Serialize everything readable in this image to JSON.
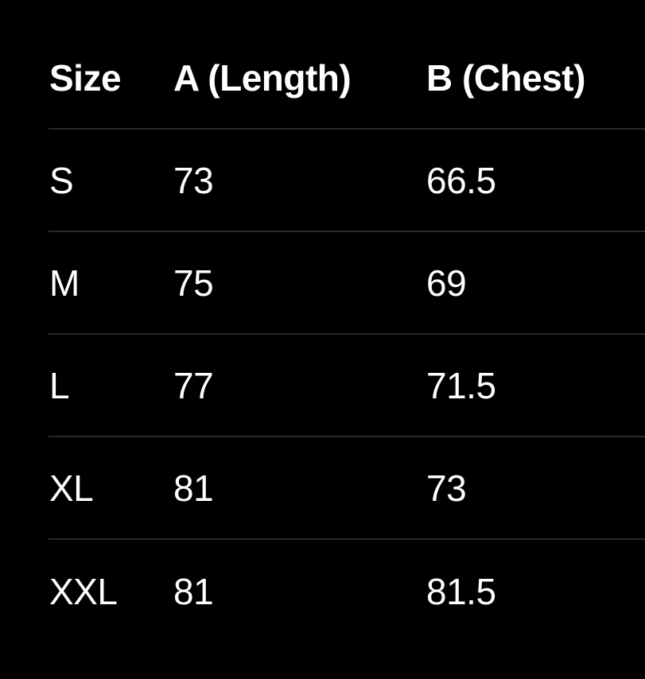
{
  "table": {
    "headers": [
      "Size",
      "A (Length)",
      "B (Chest)"
    ],
    "rows": [
      [
        "S",
        "73",
        "66.5"
      ],
      [
        "M",
        "75",
        "69"
      ],
      [
        "L",
        "77",
        "71.5"
      ],
      [
        "XL",
        "81",
        "73"
      ],
      [
        "XXL",
        "81",
        "81.5"
      ]
    ]
  }
}
